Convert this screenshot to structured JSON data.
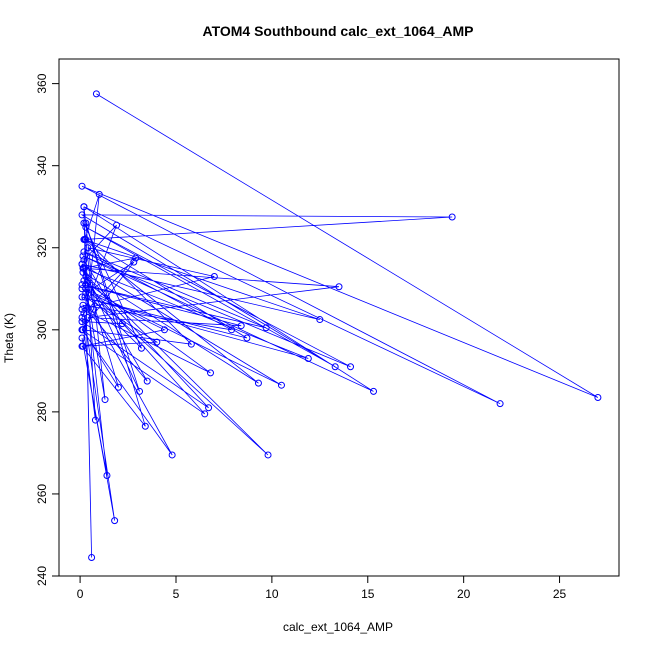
{
  "chart_data": {
    "type": "line",
    "title": "ATOM4 Southbound calc_ext_1064_AMP",
    "xlabel": "calc_ext_1064_AMP",
    "ylabel": "Theta (K)",
    "xlim": [
      -1.1,
      28.1
    ],
    "ylim": [
      240,
      366
    ],
    "xticks": [
      0,
      5,
      10,
      15,
      20,
      25
    ],
    "yticks": [
      240,
      260,
      280,
      300,
      320,
      340,
      360
    ],
    "color": "#0000ff",
    "grid": false,
    "marker": "open-circle",
    "series": [
      {
        "x": [
          0.85,
          27.0,
          0.1,
          21.9,
          0.2,
          15.3,
          0.15,
          14.1,
          0.3,
          13.3,
          0.1,
          19.4,
          0.2,
          12.5,
          0.1,
          10.5,
          0.3,
          9.8,
          0.15,
          9.3,
          0.4,
          7.0,
          0.1,
          6.8,
          0.2,
          6.5,
          0.1,
          4.8,
          0.25,
          4.0,
          0.1,
          3.4,
          0.3,
          3.1,
          0.15,
          2.9,
          0.2,
          1.8,
          0.1,
          1.4,
          0.3,
          0.6,
          0.2,
          1.3,
          0.1,
          2.0,
          0.15,
          5.8,
          0.3,
          8.7,
          0.1,
          11.9,
          0.2,
          13.5,
          0.4,
          8.4,
          0.1,
          9.7,
          0.2,
          7.9,
          0.15,
          3.5,
          0.3,
          6.7,
          0.1,
          2.2,
          0.2,
          1.9,
          0.1,
          0.8,
          0.25,
          1.0,
          0.15,
          4.4,
          0.1,
          3.2,
          0.2,
          0.7,
          0.1,
          2.8,
          0.3
        ],
        "y": [
          357.5,
          283.5,
          335,
          282,
          330,
          285,
          318,
          291,
          325,
          291,
          328,
          327.5,
          322,
          302.5,
          316,
          286.5,
          310,
          269.5,
          314,
          287,
          320,
          313,
          305,
          289.5,
          312,
          279.5,
          300,
          269.5,
          308,
          297,
          296,
          276.5,
          326,
          285,
          315,
          317.5,
          304,
          253.5,
          298,
          264.5,
          311,
          244.5,
          330,
          283,
          316,
          286,
          300,
          296.5,
          322,
          298,
          308,
          293,
          315,
          310.5,
          303,
          301,
          311,
          300.5,
          319,
          300,
          306,
          287.5,
          313,
          281,
          302,
          301.5,
          317,
          325.5,
          303,
          278,
          322,
          333,
          296,
          300,
          310,
          295.5,
          326,
          305,
          300,
          316.5,
          309
        ]
      }
    ]
  }
}
